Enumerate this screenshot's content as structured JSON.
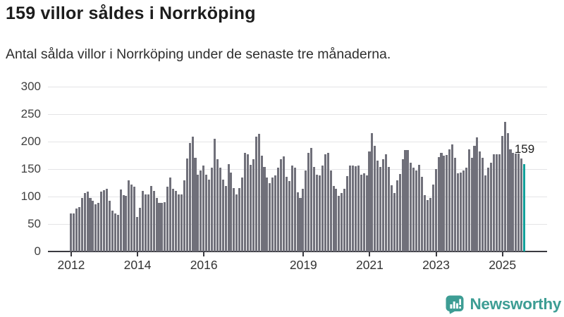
{
  "header": {
    "title": "159 villor såldes i Norrköping",
    "subtitle": "Antal sålda villor i Norrköping under de senaste tre månaderna."
  },
  "chart_data": {
    "type": "bar",
    "title": "159 villor såldes i Norrköping",
    "xlabel": "",
    "ylabel": "",
    "x_start": "2012-01",
    "x_end": "2025-09",
    "x_frequency": "monthly",
    "values": [
      69,
      69,
      78,
      81,
      97,
      106,
      109,
      97,
      92,
      86,
      88,
      109,
      111,
      114,
      92,
      75,
      69,
      67,
      113,
      103,
      101,
      130,
      122,
      118,
      63,
      80,
      110,
      104,
      104,
      119,
      110,
      97,
      88,
      88,
      90,
      118,
      135,
      114,
      110,
      104,
      104,
      130,
      169,
      197,
      209,
      171,
      140,
      147,
      157,
      140,
      131,
      152,
      205,
      168,
      152,
      131,
      119,
      159,
      144,
      116,
      104,
      116,
      135,
      180,
      177,
      158,
      168,
      209,
      214,
      174,
      154,
      134,
      124,
      135,
      139,
      152,
      168,
      173,
      136,
      128,
      156,
      152,
      108,
      97,
      114,
      147,
      179,
      189,
      154,
      140,
      139,
      157,
      177,
      180,
      147,
      119,
      114,
      101,
      107,
      114,
      137,
      156,
      157,
      155,
      157,
      140,
      142,
      139,
      182,
      216,
      192,
      165,
      154,
      168,
      177,
      154,
      120,
      107,
      130,
      141,
      168,
      185,
      185,
      161,
      152,
      148,
      158,
      136,
      103,
      93,
      97,
      122,
      150,
      172,
      179,
      174,
      176,
      186,
      195,
      171,
      142,
      144,
      148,
      152,
      186,
      171,
      192,
      208,
      182,
      171,
      138,
      152,
      161,
      177,
      177,
      177,
      210,
      236,
      216,
      186,
      180,
      178,
      178,
      169,
      159
    ],
    "ylim": [
      0,
      300
    ],
    "yticks": [
      0,
      50,
      100,
      150,
      200,
      250,
      300
    ],
    "xtick_years": [
      2012,
      2014,
      2016,
      2019,
      2021,
      2023,
      2025
    ],
    "grid": "horizontal",
    "legend": "none",
    "bar_color": "#70707A",
    "highlight_color": "#12A09A",
    "highlight_index": 164,
    "annotation": {
      "text": "159",
      "value": 159
    }
  },
  "branding": {
    "name": "Newsworthy",
    "color": "#3D9D94"
  }
}
